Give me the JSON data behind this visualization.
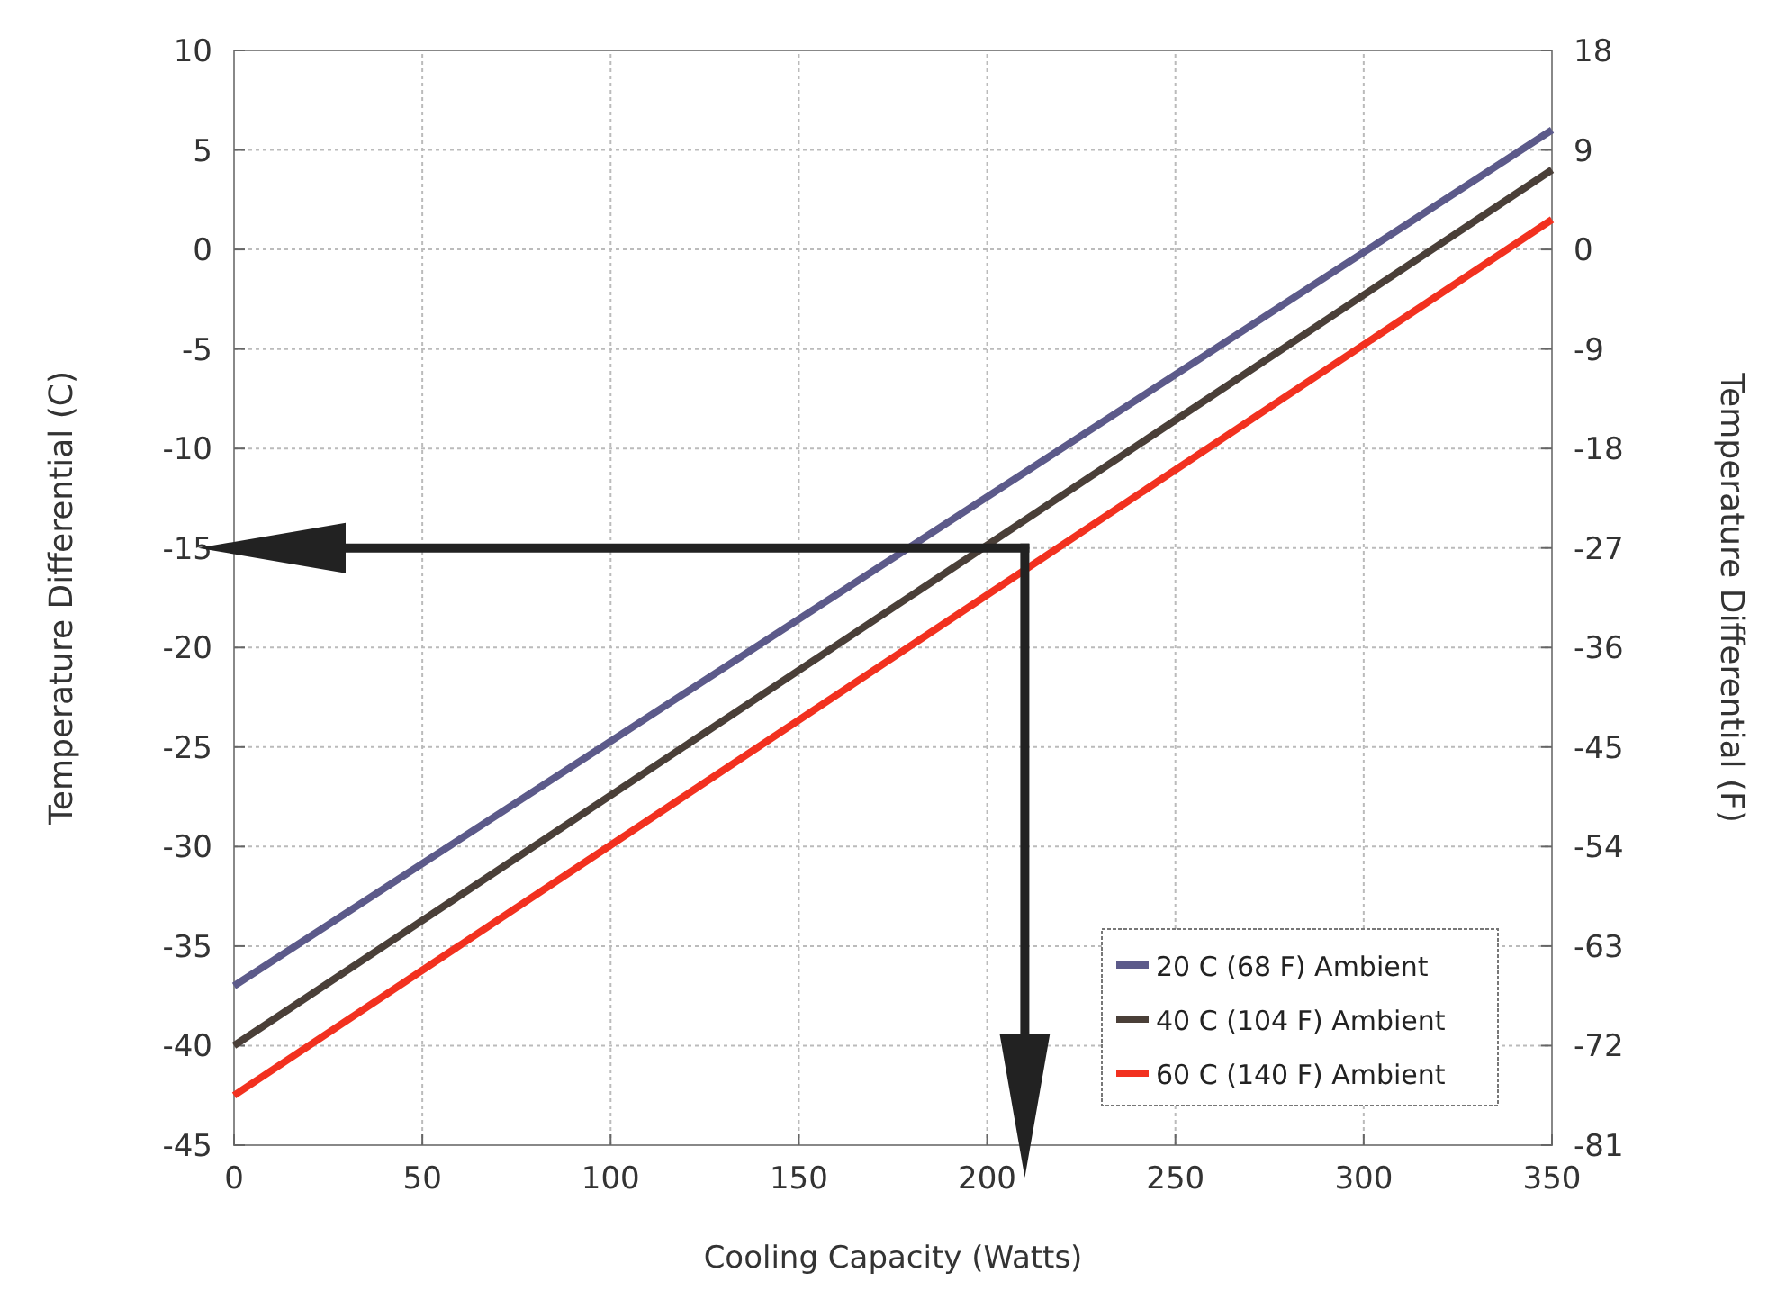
{
  "chart_data": {
    "type": "line",
    "xlabel": "Cooling Capacity (Watts)",
    "ylabel": "Temperature Differential (C)",
    "y2label": "Temperature Differential (F)",
    "x": [
      0,
      350
    ],
    "series": [
      {
        "name": "20 C (68 F) Ambient",
        "color": "#5c5a8a",
        "values": [
          -37,
          6
        ]
      },
      {
        "name": "40 C (104 F) Ambient",
        "color": "#4a3f38",
        "values": [
          -40,
          4
        ]
      },
      {
        "name": "60 C (140 F) Ambient",
        "color": "#f2311f",
        "values": [
          -42.5,
          1.5
        ]
      }
    ],
    "xlim": [
      0,
      350
    ],
    "xticks": [
      0,
      50,
      100,
      150,
      200,
      250,
      300,
      350
    ],
    "ylim": [
      -45,
      10
    ],
    "yticks": [
      -45,
      -40,
      -35,
      -30,
      -25,
      -20,
      -15,
      -10,
      -5,
      0,
      5,
      10
    ],
    "y2lim": [
      -81,
      18
    ],
    "y2ticks": [
      -81,
      -72,
      -63,
      -54,
      -45,
      -36,
      -27,
      -18,
      -9,
      0,
      9,
      18
    ],
    "grid": true,
    "legend": "bottom right",
    "marker": "none",
    "line_style": "solid"
  }
}
